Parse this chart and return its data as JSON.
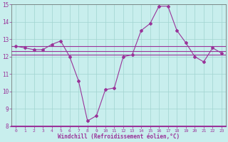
{
  "title": "",
  "xlabel": "Windchill (Refroidissement éolien,°C)",
  "ylabel": "",
  "background_color": "#c8eeed",
  "grid_color": "#a0d4d0",
  "line_color": "#993399",
  "tick_color": "#993399",
  "xlim": [
    -0.5,
    23.5
  ],
  "ylim": [
    8,
    15
  ],
  "yticks": [
    8,
    9,
    10,
    11,
    12,
    13,
    14,
    15
  ],
  "xticks": [
    0,
    1,
    2,
    3,
    4,
    5,
    6,
    7,
    8,
    9,
    10,
    11,
    12,
    13,
    14,
    15,
    16,
    17,
    18,
    19,
    20,
    21,
    22,
    23
  ],
  "main_line": [
    12.6,
    12.5,
    12.4,
    12.4,
    12.7,
    12.9,
    12.0,
    10.6,
    8.3,
    8.6,
    10.1,
    10.2,
    12.0,
    12.1,
    13.5,
    13.9,
    14.9,
    14.9,
    13.5,
    12.8,
    12.0,
    11.7,
    12.5,
    12.2
  ],
  "flat_lines": [
    12.6,
    12.3,
    12.1
  ]
}
